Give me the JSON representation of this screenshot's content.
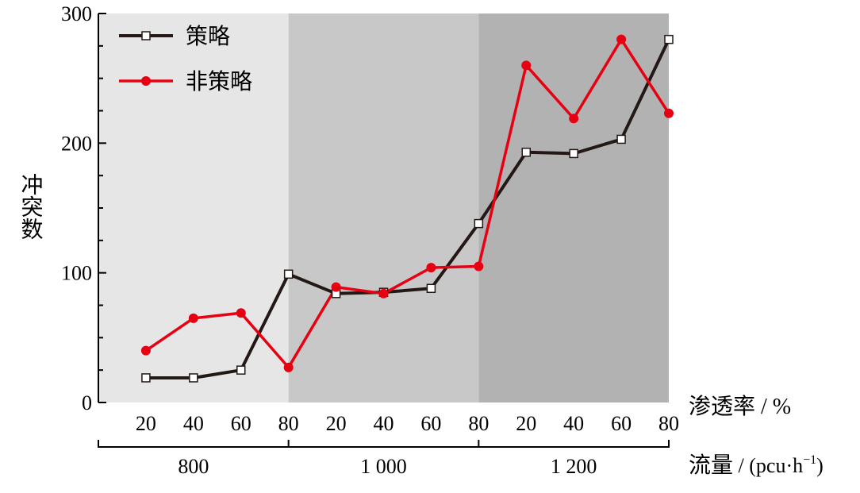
{
  "chart_data": {
    "type": "line",
    "ylabel": "冲突数",
    "ylim": [
      0,
      300
    ],
    "yticks": [
      0,
      100,
      200,
      300
    ],
    "x_axis_label_parts": {
      "text": "渗透率",
      "unit": " / %"
    },
    "group_axis_label_parts": {
      "text": "流量",
      "unit_prefix": " / (pcu·h",
      "unit_sup": "−1",
      "unit_suffix": ")"
    },
    "x": [
      "20",
      "40",
      "60",
      "80",
      "20",
      "40",
      "60",
      "80",
      "20",
      "40",
      "60",
      "80"
    ],
    "groups": [
      {
        "label": "800",
        "shade": "#e6e6e6"
      },
      {
        "label": "1 000",
        "shade": "#c8c8c8"
      },
      {
        "label": "1 200",
        "shade": "#b2b2b2"
      }
    ],
    "series": [
      {
        "name": "策略",
        "color": "#231815",
        "marker": "square",
        "values": [
          19,
          19,
          25,
          99,
          84,
          85,
          88,
          138,
          193,
          192,
          203,
          280
        ]
      },
      {
        "name": "非策略",
        "color": "#e60012",
        "marker": "circle",
        "values": [
          40,
          65,
          69,
          27,
          89,
          84,
          104,
          105,
          260,
          219,
          280,
          223
        ]
      }
    ],
    "grid": false,
    "legend_position": "top-left"
  }
}
